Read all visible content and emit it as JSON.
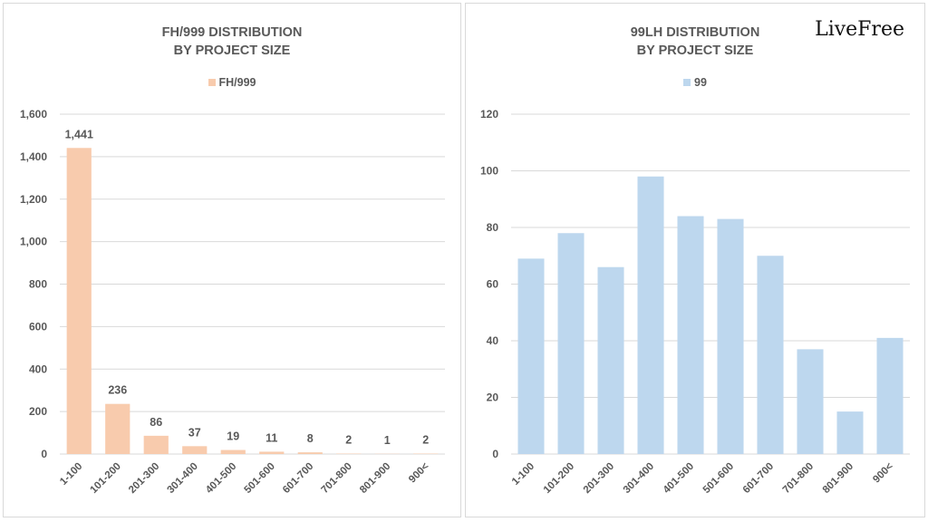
{
  "logo": "LiveFree",
  "chart_data": [
    {
      "type": "bar",
      "title": [
        "FH/999 DISTRIBUTION",
        "BY PROJECT SIZE"
      ],
      "legend": "FH/999",
      "legend_placement": "top",
      "color": "#f8cbad",
      "categories": [
        "1-100",
        "101-200",
        "201-300",
        "301-400",
        "401-500",
        "501-600",
        "601-700",
        "701-800",
        "801-900",
        "900<"
      ],
      "values": [
        1441,
        236,
        86,
        37,
        19,
        11,
        8,
        2,
        1,
        2
      ],
      "data_labels": [
        "1,441",
        "236",
        "86",
        "37",
        "19",
        "11",
        "8",
        "2",
        "1",
        "2"
      ],
      "ylim": [
        0,
        1600
      ],
      "yticks": [
        0,
        200,
        400,
        600,
        800,
        1000,
        1200,
        1400,
        1600
      ],
      "ytick_labels": [
        "0",
        "200",
        "400",
        "600",
        "800",
        "1,000",
        "1,200",
        "1,400",
        "1,600"
      ],
      "grid": true
    },
    {
      "type": "bar",
      "title": [
        "99LH DISTRIBUTION",
        "BY PROJECT SIZE"
      ],
      "legend": "99",
      "legend_placement": "top",
      "color": "#bdd7ee",
      "categories": [
        "1-100",
        "101-200",
        "201-300",
        "301-400",
        "401-500",
        "501-600",
        "601-700",
        "701-800",
        "801-900",
        "900<"
      ],
      "values": [
        69,
        78,
        66,
        98,
        84,
        83,
        70,
        37,
        15,
        41
      ],
      "ylim": [
        0,
        120
      ],
      "yticks": [
        0,
        20,
        40,
        60,
        80,
        100,
        120
      ],
      "ytick_labels": [
        "0",
        "20",
        "40",
        "60",
        "80",
        "100",
        "120"
      ],
      "grid": true
    }
  ]
}
